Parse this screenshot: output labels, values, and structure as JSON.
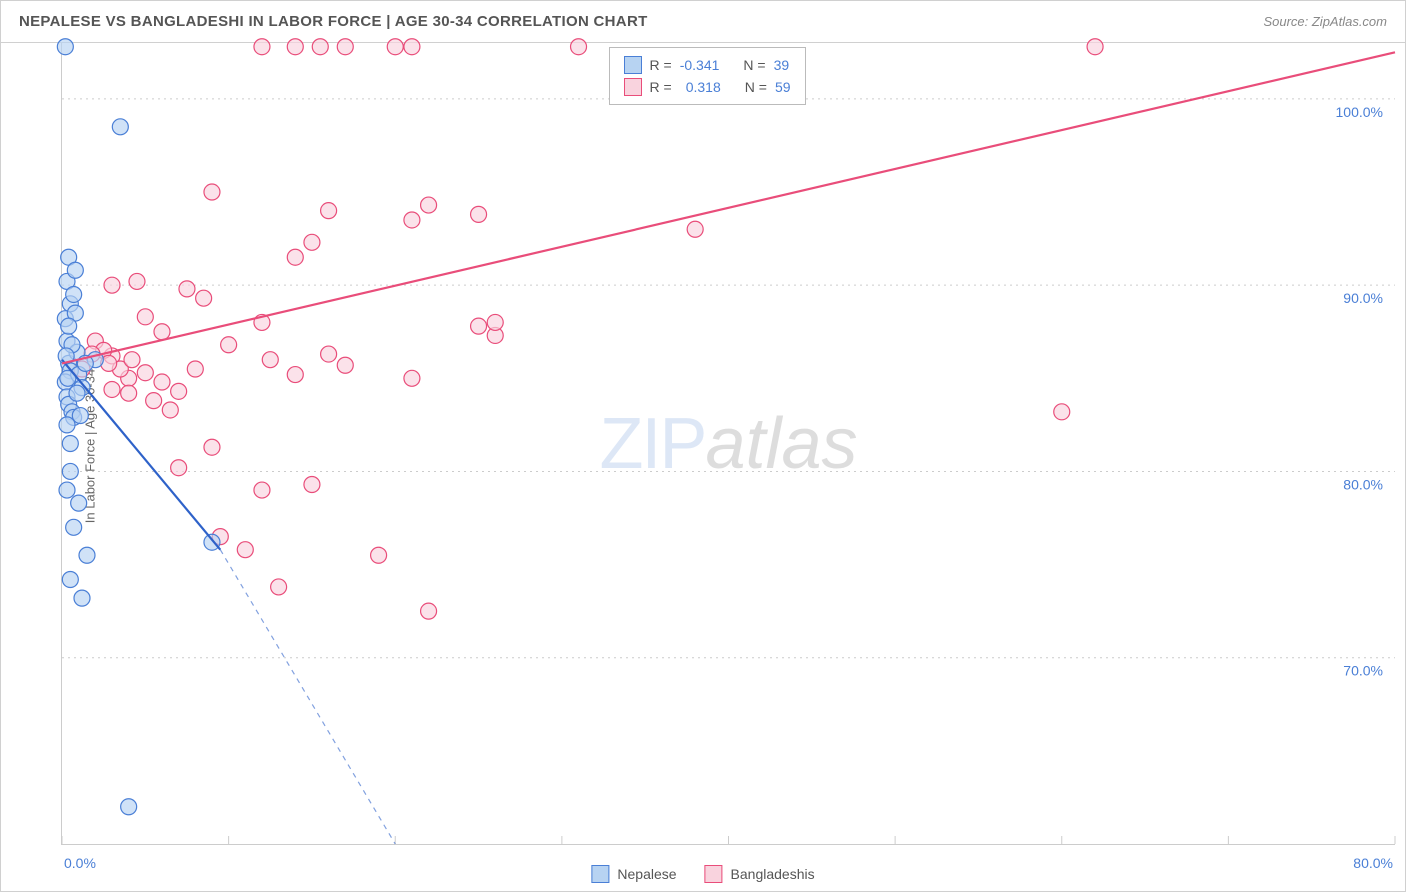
{
  "title": "NEPALESE VS BANGLADESHI IN LABOR FORCE | AGE 30-34 CORRELATION CHART",
  "source_label": "Source: ",
  "source_name": "ZipAtlas.com",
  "y_axis_label": "In Labor Force | Age 30-34",
  "watermark_part1": "ZIP",
  "watermark_part2": "atlas",
  "chart": {
    "type": "scatter",
    "xlim": [
      0,
      80
    ],
    "ylim": [
      60,
      103
    ],
    "x_ticks": [
      0,
      10,
      20,
      30,
      40,
      50,
      60,
      70,
      80
    ],
    "y_gridlines": [
      70,
      80,
      90,
      100
    ],
    "y_tick_labels": [
      "70.0%",
      "80.0%",
      "90.0%",
      "100.0%"
    ],
    "x_tick_labels": [
      "0.0%",
      "",
      "",
      "",
      "",
      "",
      "",
      "",
      "80.0%"
    ],
    "background_color": "#ffffff",
    "grid_color": "#cccccc",
    "marker_radius": 8,
    "marker_stroke_width": 1.2,
    "line_width": 2.2,
    "series": {
      "nepalese": {
        "label": "Nepalese",
        "fill_color": "#b7d3f2",
        "stroke_color": "#4a7fd6",
        "line_color": "#2e62c9",
        "R": "-0.341",
        "N": "39",
        "trend": {
          "x1": 0,
          "y1": 86.0,
          "x2": 9.5,
          "y2": 75.8,
          "dash_x2": 20,
          "dash_y2": 60
        },
        "points": [
          [
            0.2,
            102.8
          ],
          [
            3.5,
            98.5
          ],
          [
            0.4,
            91.5
          ],
          [
            0.3,
            90.2
          ],
          [
            0.5,
            89.0
          ],
          [
            0.2,
            88.2
          ],
          [
            0.3,
            87.0
          ],
          [
            0.4,
            85.8
          ],
          [
            0.5,
            85.4
          ],
          [
            0.2,
            84.8
          ],
          [
            0.3,
            84.0
          ],
          [
            0.4,
            83.6
          ],
          [
            0.6,
            83.2
          ],
          [
            0.7,
            82.9
          ],
          [
            0.3,
            82.5
          ],
          [
            1.0,
            85.2
          ],
          [
            2.0,
            86.0
          ],
          [
            0.5,
            80.0
          ],
          [
            0.3,
            79.0
          ],
          [
            1.0,
            78.3
          ],
          [
            0.7,
            77.0
          ],
          [
            1.5,
            75.5
          ],
          [
            0.5,
            74.2
          ],
          [
            1.2,
            73.2
          ],
          [
            9.0,
            76.2
          ],
          [
            4.0,
            62.0
          ],
          [
            0.8,
            88.5
          ],
          [
            1.2,
            84.5
          ],
          [
            0.9,
            86.4
          ],
          [
            0.4,
            87.8
          ],
          [
            0.6,
            86.8
          ],
          [
            1.1,
            83.0
          ],
          [
            0.7,
            89.5
          ],
          [
            0.5,
            81.5
          ],
          [
            0.8,
            90.8
          ],
          [
            0.25,
            86.2
          ],
          [
            0.35,
            85.0
          ],
          [
            0.9,
            84.2
          ],
          [
            1.4,
            85.8
          ]
        ]
      },
      "bangladeshis": {
        "label": "Bangladeshis",
        "fill_color": "#f9d3de",
        "stroke_color": "#e94d7a",
        "line_color": "#e94d7a",
        "R": "0.318",
        "N": "59",
        "trend": {
          "x1": 0,
          "y1": 85.8,
          "x2": 80,
          "y2": 102.5
        },
        "points": [
          [
            12,
            102.8
          ],
          [
            14,
            102.8
          ],
          [
            15.5,
            102.8
          ],
          [
            17,
            102.8
          ],
          [
            20,
            102.8
          ],
          [
            21,
            102.8
          ],
          [
            31,
            102.8
          ],
          [
            62,
            102.8
          ],
          [
            9,
            95.0
          ],
          [
            15,
            92.3
          ],
          [
            16,
            94.0
          ],
          [
            21,
            93.5
          ],
          [
            22,
            94.3
          ],
          [
            25,
            93.8
          ],
          [
            14,
            91.5
          ],
          [
            3,
            90.0
          ],
          [
            4.5,
            90.2
          ],
          [
            7.5,
            89.8
          ],
          [
            8.5,
            89.3
          ],
          [
            12,
            88.0
          ],
          [
            6,
            87.5
          ],
          [
            5,
            88.3
          ],
          [
            10,
            86.8
          ],
          [
            8,
            85.5
          ],
          [
            12.5,
            86.0
          ],
          [
            14,
            85.2
          ],
          [
            16,
            86.3
          ],
          [
            17,
            85.7
          ],
          [
            21,
            85.0
          ],
          [
            25,
            87.8
          ],
          [
            26,
            87.3
          ],
          [
            38,
            93.0
          ],
          [
            26,
            88.0
          ],
          [
            2,
            87.0
          ],
          [
            3,
            86.2
          ],
          [
            4,
            85.0
          ],
          [
            5,
            85.3
          ],
          [
            6,
            84.8
          ],
          [
            3.5,
            85.5
          ],
          [
            2.5,
            86.5
          ],
          [
            4,
            84.2
          ],
          [
            5.5,
            83.8
          ],
          [
            3,
            84.4
          ],
          [
            7,
            84.3
          ],
          [
            6.5,
            83.3
          ],
          [
            9,
            81.3
          ],
          [
            7,
            80.2
          ],
          [
            12,
            79.0
          ],
          [
            15,
            79.3
          ],
          [
            9.5,
            76.5
          ],
          [
            11,
            75.8
          ],
          [
            13,
            73.8
          ],
          [
            19,
            75.5
          ],
          [
            22,
            72.5
          ],
          [
            60,
            83.2
          ],
          [
            4.2,
            86.0
          ],
          [
            2.8,
            85.8
          ],
          [
            1.8,
            86.3
          ],
          [
            1.2,
            85.5
          ]
        ]
      }
    }
  },
  "stats_legend_label_R": "R =",
  "stats_legend_label_N": "N ="
}
